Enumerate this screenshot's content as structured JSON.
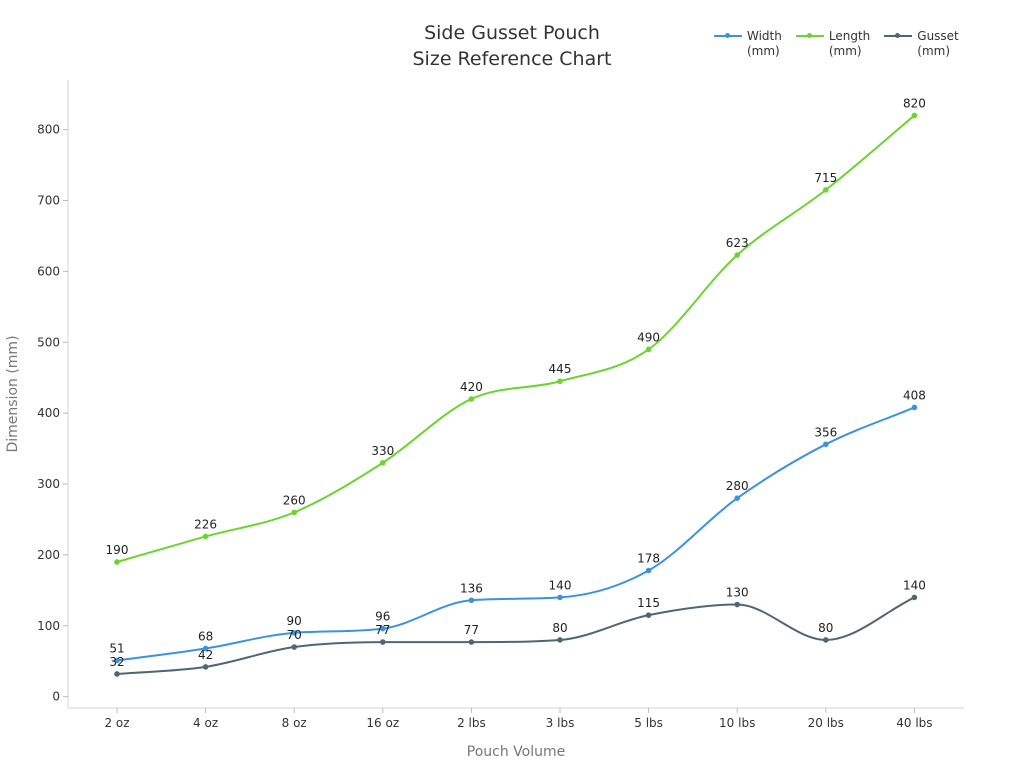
{
  "chart_data": {
    "type": "line",
    "title_line1": "Side Gusset Pouch",
    "title_line2": "Size Reference Chart",
    "xlabel": "Pouch Volume",
    "ylabel": "Dimension (mm)",
    "categories": [
      "2 oz",
      "4 oz",
      "8 oz",
      "16 oz",
      "2 lbs",
      "3 lbs",
      "5 lbs",
      "10 lbs",
      "20 lbs",
      "40 lbs"
    ],
    "ylim": [
      -16,
      870
    ],
    "yticks": [
      0,
      100,
      200,
      300,
      400,
      500,
      600,
      700,
      800
    ],
    "grid": false,
    "legend_position": "top-right",
    "series": [
      {
        "name": "Width\n(mm)",
        "color": "#3b92dd",
        "values": [
          51,
          68,
          90,
          96,
          136,
          140,
          178,
          280,
          356,
          408
        ]
      },
      {
        "name": "Length\n(mm)",
        "color": "#6cd42f",
        "values": [
          190,
          226,
          260,
          330,
          420,
          445,
          490,
          623,
          715,
          820
        ]
      },
      {
        "name": "Gusset\n(mm)",
        "color": "#4f6674",
        "values": [
          32,
          42,
          70,
          77,
          77,
          80,
          115,
          130,
          80,
          140
        ]
      }
    ]
  }
}
